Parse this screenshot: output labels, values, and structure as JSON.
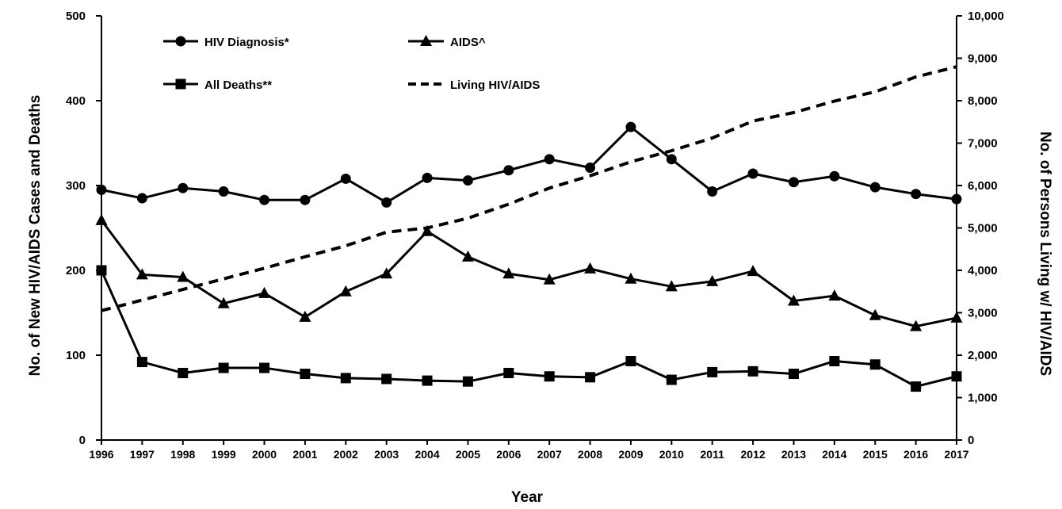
{
  "chart_data": {
    "type": "line",
    "xlabel": "Year",
    "ylabel_left": "No. of New HIV/AIDS Cases and Deaths",
    "ylabel_right": "No. of Persons Living w/ HIV/AIDS",
    "categories": [
      "1996",
      "1997",
      "1998",
      "1999",
      "2000",
      "2001",
      "2002",
      "2003",
      "2004",
      "2005",
      "2006",
      "2007",
      "2008",
      "2009",
      "2010",
      "2011",
      "2012",
      "2013",
      "2014",
      "2015",
      "2016",
      "2017"
    ],
    "ylim_left": [
      0,
      500
    ],
    "ylim_right": [
      0,
      10000
    ],
    "yticks_left": [
      "0",
      "100",
      "200",
      "300",
      "400",
      "500"
    ],
    "yticks_right": [
      "0",
      "1,000",
      "2,000",
      "3,000",
      "4,000",
      "5,000",
      "6,000",
      "7,000",
      "8,000",
      "9,000",
      "10,000"
    ],
    "grid": false,
    "legend_position": "top-left (inside plot)",
    "series": [
      {
        "name": "HIV Diagnosis*",
        "axis": "left",
        "marker": "circle",
        "line": "solid",
        "values": [
          295,
          285,
          297,
          293,
          283,
          283,
          308,
          280,
          309,
          306,
          318,
          331,
          321,
          369,
          331,
          293,
          314,
          304,
          311,
          298,
          290,
          284
        ]
      },
      {
        "name": "AIDS^",
        "axis": "left",
        "marker": "triangle",
        "line": "solid",
        "values": [
          259,
          195,
          192,
          161,
          173,
          145,
          175,
          196,
          246,
          216,
          196,
          189,
          202,
          190,
          181,
          187,
          199,
          164,
          170,
          147,
          134,
          144
        ]
      },
      {
        "name": "All Deaths**",
        "axis": "left",
        "marker": "square",
        "line": "solid",
        "values": [
          200,
          92,
          79,
          85,
          85,
          78,
          73,
          72,
          70,
          69,
          79,
          75,
          74,
          93,
          71,
          80,
          81,
          78,
          93,
          89,
          63,
          75
        ]
      },
      {
        "name": "Living HIV/AIDS",
        "axis": "right",
        "marker": "none",
        "line": "dashed",
        "values": [
          3050,
          3300,
          3550,
          3800,
          4050,
          4320,
          4580,
          4900,
          5000,
          5230,
          5560,
          5940,
          6230,
          6560,
          6820,
          7120,
          7520,
          7720,
          7990,
          8210,
          8560,
          8800
        ]
      }
    ]
  }
}
